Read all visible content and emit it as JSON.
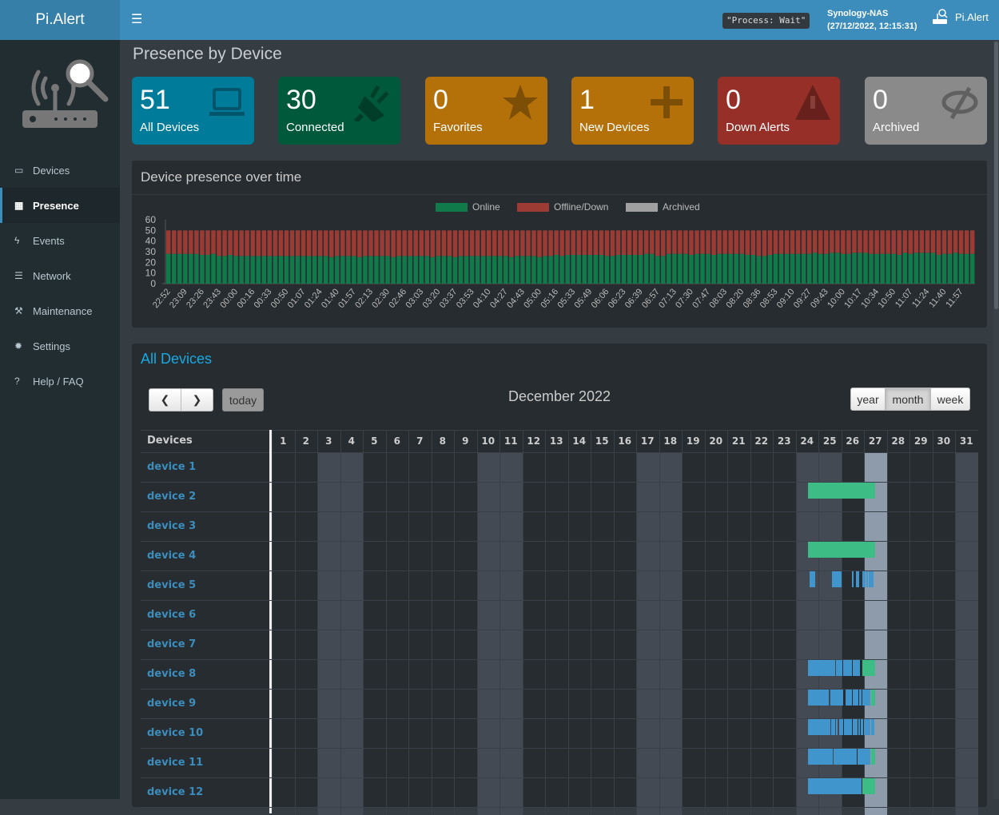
{
  "header": {
    "app_title": "Pi.Alert",
    "process_status": "\"Process: Wait\"",
    "host_name": "Synology-NAS",
    "host_time": "(27/12/2022, 12:15:31)",
    "user_label": "Pi.Alert"
  },
  "sidebar": {
    "items": [
      {
        "label": "Devices",
        "icon": "laptop-icon"
      },
      {
        "label": "Presence",
        "icon": "calendar-icon",
        "active": true
      },
      {
        "label": "Events",
        "icon": "bolt-icon"
      },
      {
        "label": "Network",
        "icon": "server-icon"
      },
      {
        "label": "Maintenance",
        "icon": "wrench-icon"
      },
      {
        "label": "Settings",
        "icon": "gear-icon"
      },
      {
        "label": "Help / FAQ",
        "icon": "question-icon"
      }
    ]
  },
  "page_title": "Presence by Device",
  "stats": [
    {
      "value": "51",
      "label": "All Devices",
      "color": "#007b9a",
      "icon": "laptop-icon"
    },
    {
      "value": "30",
      "label": "Connected",
      "color": "#00593a",
      "icon": "plug-icon"
    },
    {
      "value": "0",
      "label": "Favorites",
      "color": "#b4710a",
      "icon": "star-icon"
    },
    {
      "value": "1",
      "label": "New Devices",
      "color": "#b4710a",
      "icon": "plus-icon"
    },
    {
      "value": "0",
      "label": "Down Alerts",
      "color": "#952f27",
      "icon": "warning-icon"
    },
    {
      "value": "0",
      "label": "Archived",
      "color": "#8a8a8a",
      "icon": "eye-slash-icon"
    }
  ],
  "chart_panel": {
    "title": "Device presence over time"
  },
  "chart_data": {
    "type": "bar",
    "stacked": true,
    "legend_position": "top",
    "ylim": [
      0,
      60
    ],
    "yticks": [
      0,
      10,
      20,
      30,
      40,
      50,
      60
    ],
    "series": [
      {
        "name": "Online",
        "color": "#107a4b"
      },
      {
        "name": "Offline/Down",
        "color": "#9b3b33"
      },
      {
        "name": "Archived",
        "color": "#a0a0a0"
      }
    ],
    "total": 50,
    "online": [
      28,
      28,
      28,
      28,
      28,
      28,
      27,
      27,
      28,
      26,
      26,
      27,
      26,
      26,
      26,
      26,
      26,
      26,
      26,
      26,
      26,
      26,
      26,
      26,
      26,
      26,
      26,
      26,
      26,
      25,
      26,
      26,
      26,
      26,
      25,
      26,
      26,
      26,
      26,
      26,
      25,
      26,
      26,
      26,
      26,
      26,
      26,
      25,
      26,
      26,
      26,
      25,
      26,
      26,
      26,
      26,
      26,
      26,
      26,
      26,
      26,
      25,
      26,
      26,
      26,
      26,
      25,
      26,
      26,
      27,
      26,
      27,
      27,
      27,
      27,
      27,
      27,
      27,
      26,
      26,
      27,
      27,
      27,
      27,
      27,
      28,
      28,
      26,
      26,
      28,
      28,
      28,
      28,
      27,
      28,
      28,
      28,
      27,
      28,
      28,
      28,
      28,
      28,
      27,
      27,
      26,
      26,
      27,
      28,
      28,
      28,
      28,
      28,
      28,
      28,
      29,
      28,
      28,
      29,
      29,
      28,
      28,
      29,
      29,
      29,
      28,
      28,
      28,
      28,
      28,
      27,
      29,
      28,
      29,
      29,
      29,
      29,
      27,
      28,
      28,
      29,
      28,
      28,
      28
    ],
    "archived": 0,
    "xtick_labels": [
      "22:52",
      "23:09",
      "23:26",
      "23:43",
      "00:00",
      "00:16",
      "00:33",
      "00:50",
      "01:07",
      "01:24",
      "01:40",
      "01:57",
      "02:13",
      "02:30",
      "02:46",
      "03:03",
      "03:20",
      "03:37",
      "03:53",
      "04:10",
      "04:27",
      "04:43",
      "05:00",
      "05:16",
      "05:33",
      "05:49",
      "06:06",
      "06:23",
      "06:39",
      "06:57",
      "07:13",
      "07:30",
      "07:47",
      "08:03",
      "08:20",
      "08:36",
      "08:53",
      "09:10",
      "09:27",
      "09:43",
      "10:00",
      "10:17",
      "10:34",
      "10:50",
      "11:07",
      "11:24",
      "11:40",
      "11:57"
    ]
  },
  "calendar": {
    "title": "All Devices",
    "month_label": "December 2022",
    "today_label": "today",
    "views": [
      "year",
      "month",
      "week"
    ],
    "active_view": "month",
    "devices_header": "Devices",
    "days": 31,
    "weekend_days": [
      3,
      4,
      10,
      11,
      17,
      18,
      24,
      25,
      31
    ],
    "today": 27,
    "colors": {
      "closed": "#4096cc",
      "active": "#3dbd85",
      "weekend": "#434a53",
      "today": "#8e9bab"
    },
    "devices": [
      {
        "name": "device 1",
        "sessions": []
      },
      {
        "name": "device 2",
        "sessions": [
          {
            "start": "2022-12-24 13:03",
            "end": "2022-12-27 11:47",
            "type": "active"
          }
        ]
      },
      {
        "name": "device 3",
        "sessions": []
      },
      {
        "name": "device 4",
        "sessions": [
          {
            "start": "2022-12-24 13:03",
            "end": "2022-12-27 11:47",
            "type": "active"
          }
        ]
      },
      {
        "name": "device 5",
        "sessions": [
          {
            "start": "2022-12-24 14:40",
            "end": "2022-12-24 20:40",
            "type": "closed"
          },
          {
            "start": "2022-12-25 14:24",
            "end": "2022-12-26 00:30",
            "type": "closed"
          },
          {
            "start": "2022-12-26 11:17",
            "end": "2022-12-26 13:00",
            "type": "closed"
          },
          {
            "start": "2022-12-26 15:36",
            "end": "2022-12-26 19:00",
            "type": "closed"
          },
          {
            "start": "2022-12-26 22:20",
            "end": "2022-12-27 01:40",
            "type": "closed"
          },
          {
            "start": "2022-12-27 02:38",
            "end": "2022-12-27 04:19",
            "type": "closed"
          },
          {
            "start": "2022-12-27 05:02",
            "end": "2022-12-27 10:05",
            "type": "closed"
          }
        ]
      },
      {
        "name": "device 6",
        "sessions": []
      },
      {
        "name": "device 7",
        "sessions": []
      },
      {
        "name": "device 8",
        "sessions": [
          {
            "start": "2022-12-24 13:03",
            "end": "2022-12-25 17:41",
            "type": "closed"
          },
          {
            "start": "2022-12-25 18:32",
            "end": "2022-12-26 01:16",
            "type": "closed"
          },
          {
            "start": "2022-12-26 02:06",
            "end": "2022-12-26 11:22",
            "type": "closed"
          },
          {
            "start": "2022-12-26 12:13",
            "end": "2022-12-26 19:48",
            "type": "closed"
          },
          {
            "start": "2022-12-26 22:19",
            "end": "2022-12-27 11:47",
            "type": "active"
          }
        ]
      },
      {
        "name": "device 9",
        "sessions": [
          {
            "start": "2022-12-24 13:03",
            "end": "2022-12-25 11:14",
            "type": "closed"
          },
          {
            "start": "2022-12-25 12:37",
            "end": "2022-12-26 02:06",
            "type": "closed"
          },
          {
            "start": "2022-12-26 04:21",
            "end": "2022-12-26 11:22",
            "type": "closed"
          },
          {
            "start": "2022-12-26 12:13",
            "end": "2022-12-26 18:06",
            "type": "closed"
          },
          {
            "start": "2022-12-26 18:56",
            "end": "2022-12-26 21:29",
            "type": "closed"
          },
          {
            "start": "2022-12-26 22:19",
            "end": "2022-12-27 06:44",
            "type": "closed"
          },
          {
            "start": "2022-12-27 07:35",
            "end": "2022-12-27 11:47",
            "type": "active"
          }
        ]
      },
      {
        "name": "device 10",
        "sessions": [
          {
            "start": "2022-12-24 13:03",
            "end": "2022-12-25 12:37",
            "type": "closed"
          },
          {
            "start": "2022-12-25 13:28",
            "end": "2022-12-25 17:41",
            "type": "closed"
          },
          {
            "start": "2022-12-25 18:32",
            "end": "2022-12-25 20:13",
            "type": "closed"
          },
          {
            "start": "2022-12-25 21:53",
            "end": "2022-12-26 02:06",
            "type": "closed"
          },
          {
            "start": "2022-12-26 02:57",
            "end": "2022-12-26 11:22",
            "type": "closed"
          },
          {
            "start": "2022-12-26 12:13",
            "end": "2022-12-26 17:15",
            "type": "closed"
          },
          {
            "start": "2022-12-26 18:06",
            "end": "2022-12-26 19:48",
            "type": "closed"
          },
          {
            "start": "2022-12-26 20:38",
            "end": "2022-12-26 23:10",
            "type": "closed"
          },
          {
            "start": "2022-12-27 00:00",
            "end": "2022-12-27 06:44",
            "type": "closed"
          },
          {
            "start": "2022-12-27 07:35",
            "end": "2022-12-27 08:25",
            "type": "closed"
          },
          {
            "start": "2022-12-27 09:16",
            "end": "2022-12-27 10:57",
            "type": "closed"
          }
        ]
      },
      {
        "name": "device 11",
        "sessions": [
          {
            "start": "2022-12-24 13:03",
            "end": "2022-12-25 15:10",
            "type": "closed"
          },
          {
            "start": "2022-12-25 16:00",
            "end": "2022-12-26 16:25",
            "type": "closed"
          },
          {
            "start": "2022-12-26 17:15",
            "end": "2022-12-27 06:44",
            "type": "closed"
          },
          {
            "start": "2022-12-27 07:35",
            "end": "2022-12-27 11:47",
            "type": "active"
          }
        ]
      },
      {
        "name": "device 12",
        "sessions": [
          {
            "start": "2022-12-24 13:03",
            "end": "2022-12-26 21:29",
            "type": "closed"
          },
          {
            "start": "2022-12-26 22:19",
            "end": "2022-12-27 11:47",
            "type": "active"
          }
        ]
      }
    ]
  }
}
